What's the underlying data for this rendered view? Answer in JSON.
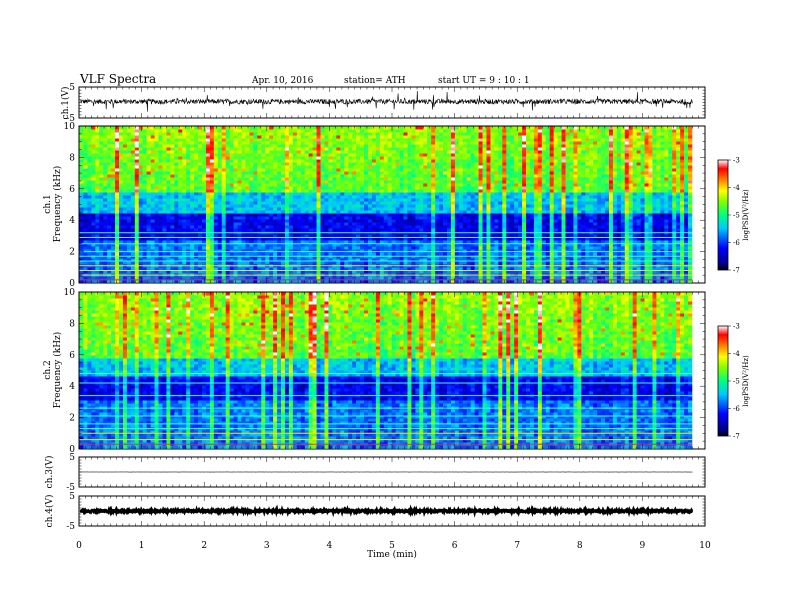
{
  "header": {
    "title": "VLF  Spectra",
    "date": "Apr. 10, 2016",
    "station": "station= ATH",
    "start_ut": "start  UT  =    9  : 10 : 1"
  },
  "chart_data": [
    {
      "type": "line",
      "panel": "ch1-waveform",
      "ylabel": "ch.1(V)",
      "ylim": [
        -5,
        5
      ],
      "yticks": [
        "5",
        "-5"
      ],
      "baseline": 0.3,
      "noise_amplitude": 0.8,
      "spikes_amplitude": 3
    },
    {
      "type": "heatmap",
      "panel": "ch1-spectrogram",
      "ylabel": [
        "ch.1",
        "Frequency  (kHz)"
      ],
      "ylim": [
        0,
        10
      ],
      "yticks": [
        "0",
        "2",
        "4",
        "6",
        "8",
        "10"
      ],
      "colorbar": {
        "label": "logPSD(V²/Hz)",
        "range": [
          -7,
          -3
        ],
        "ticks": [
          "-3",
          "-4",
          "-5",
          "-6",
          "-7"
        ]
      },
      "dark_band_kHz": [
        2.6,
        4.5
      ],
      "line_frequencies_kHz": [
        0.2,
        0.5,
        0.8,
        1.1,
        1.4,
        1.7,
        2.0,
        2.5,
        2.9,
        3.2
      ]
    },
    {
      "type": "heatmap",
      "panel": "ch2-spectrogram",
      "ylabel": [
        "ch.2",
        "Frequency  (kHz)"
      ],
      "ylim": [
        0,
        10
      ],
      "yticks": [
        "0",
        "2",
        "4",
        "6",
        "8",
        "10"
      ],
      "colorbar": {
        "label": "logPSD(V²/Hz)",
        "range": [
          -7,
          -3
        ],
        "ticks": [
          "-3",
          "-4",
          "-5",
          "-6",
          "-7"
        ]
      },
      "dark_band_kHz": [
        3.0,
        4.6
      ],
      "line_frequencies_kHz": [
        0.3,
        0.6,
        1.0,
        1.3,
        1.6,
        2.1,
        2.6,
        3.4,
        4.2,
        4.8
      ]
    },
    {
      "type": "line",
      "panel": "ch3-waveform",
      "ylabel": "ch.3(V)",
      "ylim": [
        -5,
        5
      ],
      "yticks": [
        "5",
        "-5"
      ],
      "baseline": 0,
      "noise_amplitude": 0.05,
      "spikes_amplitude": 0
    },
    {
      "type": "line",
      "panel": "ch4-waveform",
      "ylabel": "ch.4(V)",
      "ylim": [
        -5,
        5
      ],
      "yticks": [
        "5",
        "-5"
      ],
      "baseline": 0,
      "noise_amplitude": 0.3,
      "spikes_amplitude": 0
    }
  ],
  "xaxis": {
    "label": "Time  (min)",
    "range": [
      0,
      10
    ],
    "data_end": 9.8,
    "ticks": [
      "0",
      "1",
      "2",
      "3",
      "4",
      "5",
      "6",
      "7",
      "8",
      "9",
      "10"
    ]
  }
}
